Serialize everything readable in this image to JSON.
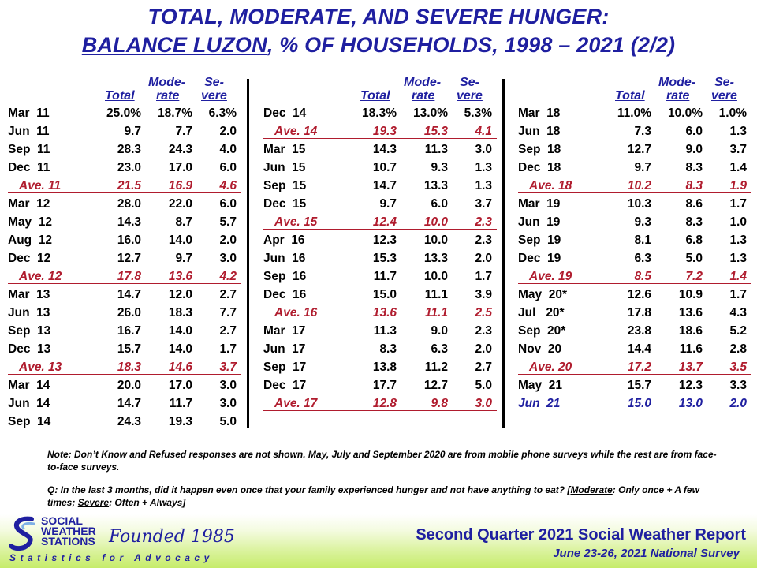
{
  "title": {
    "line1": "TOTAL, MODERATE, AND SEVERE HUNGER:",
    "line2_underlined": "BALANCE LUZON",
    "line2_rest": ", % OF HOUSEHOLDS, 1998 – 2021 (2/2)"
  },
  "headers": {
    "mode_top": "Mode-",
    "mode_bottom": "rate",
    "severe_top": "Se-",
    "severe_bottom": "vere",
    "total": "Total"
  },
  "columns": [
    {
      "rows": [
        {
          "type": "data",
          "label": "Mar  11",
          "total": "25.0%",
          "moderate": "18.7%",
          "severe": "6.3%"
        },
        {
          "type": "data",
          "label": "Jun  11",
          "total": "9.7",
          "moderate": "7.7",
          "severe": "2.0"
        },
        {
          "type": "data",
          "label": "Sep  11",
          "total": "28.3",
          "moderate": "24.3",
          "severe": "4.0"
        },
        {
          "type": "data",
          "label": "Dec  11",
          "total": "23.0",
          "moderate": "17.0",
          "severe": "6.0"
        },
        {
          "type": "ave",
          "label": "Ave. 11",
          "total": "21.5",
          "moderate": "16.9",
          "severe": "4.6"
        },
        {
          "type": "data",
          "label": "Mar  12",
          "total": "28.0",
          "moderate": "22.0",
          "severe": "6.0"
        },
        {
          "type": "data",
          "label": "May  12",
          "total": "14.3",
          "moderate": "8.7",
          "severe": "5.7"
        },
        {
          "type": "data",
          "label": "Aug  12",
          "total": "16.0",
          "moderate": "14.0",
          "severe": "2.0"
        },
        {
          "type": "data",
          "label": "Dec  12",
          "total": "12.7",
          "moderate": "9.7",
          "severe": "3.0"
        },
        {
          "type": "ave",
          "label": "Ave. 12",
          "total": "17.8",
          "moderate": "13.6",
          "severe": "4.2"
        },
        {
          "type": "data",
          "label": "Mar  13",
          "total": "14.7",
          "moderate": "12.0",
          "severe": "2.7"
        },
        {
          "type": "data",
          "label": "Jun  13",
          "total": "26.0",
          "moderate": "18.3",
          "severe": "7.7"
        },
        {
          "type": "data",
          "label": "Sep  13",
          "total": "16.7",
          "moderate": "14.0",
          "severe": "2.7"
        },
        {
          "type": "data",
          "label": "Dec  13",
          "total": "15.7",
          "moderate": "14.0",
          "severe": "1.7"
        },
        {
          "type": "ave",
          "label": "Ave. 13",
          "total": "18.3",
          "moderate": "14.6",
          "severe": "3.7"
        },
        {
          "type": "data",
          "label": "Mar  14",
          "total": "20.0",
          "moderate": "17.0",
          "severe": "3.0"
        },
        {
          "type": "data",
          "label": "Jun  14",
          "total": "14.7",
          "moderate": "11.7",
          "severe": "3.0"
        },
        {
          "type": "data",
          "label": "Sep  14",
          "total": "24.3",
          "moderate": "19.3",
          "severe": "5.0"
        }
      ]
    },
    {
      "rows": [
        {
          "type": "data",
          "label": "Dec  14",
          "total": "18.3%",
          "moderate": "13.0%",
          "severe": "5.3%"
        },
        {
          "type": "ave",
          "label": "Ave. 14",
          "total": "19.3",
          "moderate": "15.3",
          "severe": "4.1"
        },
        {
          "type": "data",
          "label": "Mar  15",
          "total": "14.3",
          "moderate": "11.3",
          "severe": "3.0"
        },
        {
          "type": "data",
          "label": "Jun  15",
          "total": "10.7",
          "moderate": "9.3",
          "severe": "1.3"
        },
        {
          "type": "data",
          "label": "Sep  15",
          "total": "14.7",
          "moderate": "13.3",
          "severe": "1.3"
        },
        {
          "type": "data",
          "label": "Dec  15",
          "total": "9.7",
          "moderate": "6.0",
          "severe": "3.7"
        },
        {
          "type": "ave",
          "label": "Ave. 15",
          "total": "12.4",
          "moderate": "10.0",
          "severe": "2.3"
        },
        {
          "type": "data",
          "label": "Apr  16",
          "total": "12.3",
          "moderate": "10.0",
          "severe": "2.3"
        },
        {
          "type": "data",
          "label": "Jun  16",
          "total": "15.3",
          "moderate": "13.3",
          "severe": "2.0"
        },
        {
          "type": "data",
          "label": "Sep  16",
          "total": "11.7",
          "moderate": "10.0",
          "severe": "1.7"
        },
        {
          "type": "data",
          "label": "Dec  16",
          "total": "15.0",
          "moderate": "11.1",
          "severe": "3.9"
        },
        {
          "type": "ave",
          "label": "Ave. 16",
          "total": "13.6",
          "moderate": "11.1",
          "severe": "2.5"
        },
        {
          "type": "data",
          "label": "Mar  17",
          "total": "11.3",
          "moderate": "9.0",
          "severe": "2.3"
        },
        {
          "type": "data",
          "label": "Jun  17",
          "total": "8.3",
          "moderate": "6.3",
          "severe": "2.0"
        },
        {
          "type": "data",
          "label": "Sep  17",
          "total": "13.8",
          "moderate": "11.2",
          "severe": "2.7"
        },
        {
          "type": "data",
          "label": "Dec  17",
          "total": "17.7",
          "moderate": "12.7",
          "severe": "5.0"
        },
        {
          "type": "ave",
          "label": "Ave. 17",
          "total": "12.8",
          "moderate": "9.8",
          "severe": "3.0"
        }
      ]
    },
    {
      "rows": [
        {
          "type": "data",
          "label": "Mar  18",
          "total": "11.0%",
          "moderate": "10.0%",
          "severe": "1.0%"
        },
        {
          "type": "data",
          "label": "Jun  18",
          "total": "7.3",
          "moderate": "6.0",
          "severe": "1.3"
        },
        {
          "type": "data",
          "label": "Sep  18",
          "total": "12.7",
          "moderate": "9.0",
          "severe": "3.7"
        },
        {
          "type": "data",
          "label": "Dec  18",
          "total": "9.7",
          "moderate": "8.3",
          "severe": "1.4"
        },
        {
          "type": "ave",
          "label": "Ave. 18",
          "total": "10.2",
          "moderate": "8.3",
          "severe": "1.9"
        },
        {
          "type": "data",
          "label": "Mar  19",
          "total": "10.3",
          "moderate": "8.6",
          "severe": "1.7"
        },
        {
          "type": "data",
          "label": "Jun  19",
          "total": "9.3",
          "moderate": "8.3",
          "severe": "1.0"
        },
        {
          "type": "data",
          "label": "Sep  19",
          "total": "8.1",
          "moderate": "6.8",
          "severe": "1.3"
        },
        {
          "type": "data",
          "label": "Dec  19",
          "total": "6.3",
          "moderate": "5.0",
          "severe": "1.3"
        },
        {
          "type": "ave",
          "label": "Ave. 19",
          "total": "8.5",
          "moderate": "7.2",
          "severe": "1.4"
        },
        {
          "type": "data",
          "label": "May  20*",
          "total": "12.6",
          "moderate": "10.9",
          "severe": "1.7"
        },
        {
          "type": "data",
          "label": "Jul   20*",
          "total": "17.8",
          "moderate": "13.6",
          "severe": "4.3"
        },
        {
          "type": "data",
          "label": "Sep  20*",
          "total": "23.8",
          "moderate": "18.6",
          "severe": "5.2"
        },
        {
          "type": "data",
          "label": "Nov  20",
          "total": "14.4",
          "moderate": "11.6",
          "severe": "2.8"
        },
        {
          "type": "ave",
          "label": "Ave. 20",
          "total": "17.2",
          "moderate": "13.7",
          "severe": "3.5"
        },
        {
          "type": "data",
          "label": "May  21",
          "total": "15.7",
          "moderate": "12.3",
          "severe": "3.3"
        },
        {
          "type": "latest",
          "label": "Jun  21",
          "total": "15.0",
          "moderate": "13.0",
          "severe": "2.0"
        }
      ]
    }
  ],
  "notes": {
    "note1": "Note: Don’t Know and Refused responses are not shown. May, July and September 2020 are from mobile phone surveys while the rest are from face-to-face surveys.",
    "q_prefix": "Q: In the last 3 months, did it happen even once that your family experienced hunger and not have anything to eat? [",
    "q_moderate": "Moderate",
    "q_mid": ": Only once + A few times; ",
    "q_severe": "Severe",
    "q_suffix": ": Often + Always]"
  },
  "footer": {
    "logo_line1": "SOCIAL",
    "logo_line2": "WEATHER",
    "logo_line3": "STATIONS",
    "founded": "Founded 1985",
    "tagline": "Statistics for Advocacy",
    "report_title": "Second Quarter 2021 Social Weather Report",
    "report_sub": "June 23-26, 2021 National Survey"
  },
  "colors": {
    "title_blue": "#1f1fa0",
    "average_red": "#b01c2e",
    "footer_green": "#c6ec6a"
  }
}
